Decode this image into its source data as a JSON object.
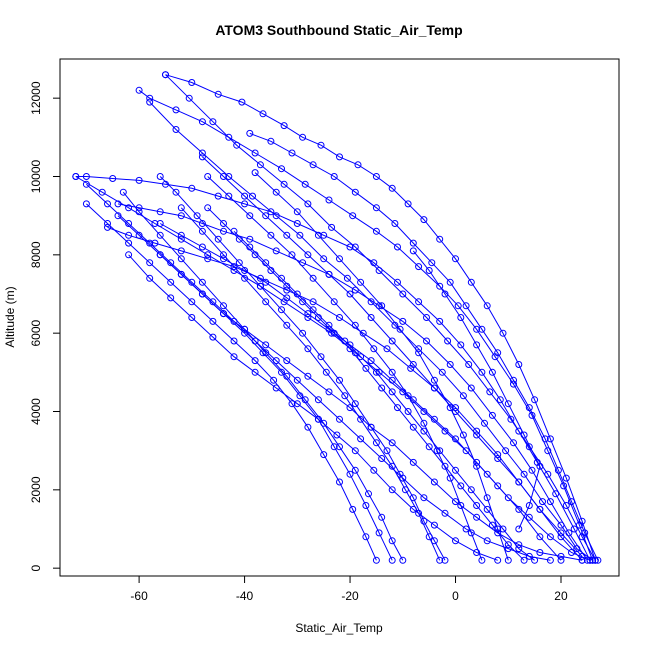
{
  "chart_data": {
    "type": "scatter",
    "title": "ATOM3 Southbound Static_Air_Temp",
    "xlabel": "Static_Air_Temp",
    "ylabel": "Altitude (m)",
    "xlim": [
      -75,
      31
    ],
    "ylim": [
      -200,
      13000
    ],
    "xticks": [
      -60,
      -40,
      -20,
      0,
      20
    ],
    "yticks": [
      0,
      2000,
      4000,
      6000,
      8000,
      10000,
      12000
    ],
    "plot_style": "points connected by lines, open circle markers",
    "grid": false,
    "legend": "none",
    "color": "#0000ff",
    "series": [
      {
        "x": [
          26.5,
          24.0,
          21.0,
          18.0,
          15.0,
          12.0,
          9.0,
          6.0,
          3.0,
          0.0,
          -3.0,
          -6.0,
          -9.0,
          -12.0,
          -15.0,
          -18.5,
          -22.0,
          -25.5,
          -29.0,
          -32.5,
          -36.5,
          -40.5,
          -45.0,
          -50.0,
          -55.0
        ],
        "y": [
          200,
          1200,
          2300,
          3300,
          4300,
          5200,
          6000,
          6700,
          7300,
          7900,
          8400,
          8900,
          9300,
          9700,
          10000,
          10300,
          10500,
          10800,
          11000,
          11300,
          11600,
          11900,
          12100,
          12400,
          12600
        ]
      },
      {
        "x": [
          -55.0,
          -50.5,
          -46.0,
          -41.5,
          -37.0,
          -32.5,
          -28.0,
          -23.5,
          -19.0,
          -14.5,
          -10.0,
          -5.5,
          -1.5,
          2.5,
          6.5,
          10.5,
          14.0,
          17.5,
          21.0,
          24.0,
          26.5
        ],
        "y": [
          12600,
          12000,
          11400,
          10800,
          10300,
          9800,
          9300,
          8700,
          8200,
          7600,
          7000,
          6400,
          5800,
          5200,
          4500,
          3800,
          3100,
          2400,
          1600,
          800,
          200
        ]
      },
      {
        "x": [
          26.0,
          23.5,
          20.5,
          17.5,
          14.5,
          11.0,
          7.5,
          4.0,
          0.5,
          -3.0,
          -7.0,
          -11.0,
          -15.0,
          -19.5,
          -24.0,
          -28.5,
          -33.0,
          -38.0,
          -43.0,
          -48.0,
          -53.0,
          -58.0,
          -60.0
        ],
        "y": [
          200,
          1100,
          2100,
          3000,
          3900,
          4700,
          5400,
          6100,
          6700,
          7200,
          7700,
          8200,
          8600,
          9000,
          9400,
          9800,
          10200,
          10600,
          11000,
          11400,
          11700,
          12000,
          12200
        ]
      },
      {
        "x": [
          -58.0,
          -53.0,
          -48.0,
          -43.0,
          -38.5,
          -34.0,
          -29.5,
          -25.0,
          -20.5,
          -16.0,
          -11.5,
          -7.0,
          -2.5,
          1.5,
          5.5,
          9.5,
          13.0,
          16.5,
          20.0,
          23.0,
          26.0
        ],
        "y": [
          11900,
          11200,
          10600,
          10000,
          9500,
          9000,
          8500,
          7900,
          7400,
          6800,
          6200,
          5600,
          5000,
          4400,
          3700,
          3000,
          2400,
          1700,
          1100,
          500,
          200
        ]
      },
      {
        "x": [
          25.5,
          22.5,
          19.0,
          15.5,
          12.0,
          8.5,
          5.0,
          1.0,
          -3.0,
          -7.0,
          -11.0,
          -15.5,
          -20.0,
          -25.0,
          -30.0,
          -35.0,
          -40.0,
          -45.0,
          -50.0,
          -55.0,
          -60.0,
          -65.0,
          -70.0,
          -72.0
        ],
        "y": [
          200,
          1000,
          1900,
          2700,
          3500,
          4300,
          5000,
          5700,
          6300,
          6800,
          7300,
          7800,
          8200,
          8500,
          8800,
          9100,
          9300,
          9500,
          9700,
          9800,
          9900,
          9950,
          10000,
          10000
        ]
      },
      {
        "x": [
          -72.0,
          -67.0,
          -62.0,
          -57.0,
          -52.0,
          -47.0,
          -42.0,
          -37.0,
          -32.5,
          -28.0,
          -23.5,
          -19.0,
          -14.5,
          -10.0,
          -6.0,
          -2.0,
          2.0,
          6.0,
          10.0,
          14.0,
          18.0,
          22.0,
          25.5
        ],
        "y": [
          10000,
          9600,
          9200,
          8800,
          8400,
          8000,
          7600,
          7200,
          6800,
          6400,
          6000,
          5500,
          5000,
          4500,
          4000,
          3500,
          3000,
          2400,
          1800,
          1300,
          800,
          400,
          200
        ]
      },
      {
        "x": [
          25.0,
          21.5,
          18.0,
          14.5,
          11.0,
          7.0,
          3.0,
          -1.0,
          -5.5,
          -10.0,
          -14.5,
          -19.0,
          -24.0,
          -29.0,
          -34.0,
          -39.0,
          -44.0,
          -48.0,
          -52.0,
          -56.0,
          -60.0,
          -64.0
        ],
        "y": [
          200,
          900,
          1700,
          2500,
          3200,
          3900,
          4600,
          5200,
          5800,
          6300,
          6700,
          7100,
          7500,
          7800,
          8100,
          8400,
          8600,
          8800,
          9000,
          9100,
          9200,
          9300
        ]
      },
      {
        "x": [
          -64.0,
          -60.0,
          -56.0,
          -52.0,
          -48.0,
          -44.0,
          -40.0,
          -36.0,
          -32.0,
          -28.0,
          -24.0,
          -20.0,
          -16.0,
          -12.0,
          -8.0,
          -4.0,
          0.0,
          4.0,
          8.0,
          12.0,
          16.0,
          20.0,
          24.0
        ],
        "y": [
          9000,
          8500,
          8000,
          7500,
          7000,
          6500,
          6100,
          5700,
          5300,
          4900,
          4500,
          4100,
          3600,
          3200,
          2700,
          2200,
          1700,
          1300,
          900,
          600,
          400,
          300,
          200
        ]
      },
      {
        "x": [
          24.0,
          20.0,
          16.0,
          12.0,
          8.0,
          4.0,
          0.0,
          -4.0,
          -8.5,
          -13.0,
          -17.5,
          -22.0,
          -27.0,
          -32.0,
          -37.0,
          -42.0,
          -47.0,
          -52.0,
          -57.0,
          -62.0,
          -66.0
        ],
        "y": [
          200,
          800,
          1500,
          2200,
          2900,
          3500,
          4100,
          4600,
          5100,
          5600,
          6000,
          6400,
          6800,
          7100,
          7400,
          7700,
          7900,
          8100,
          8300,
          8500,
          8700
        ]
      },
      {
        "x": [
          -62.0,
          -58.0,
          -54.0,
          -50.0,
          -46.0,
          -42.0,
          -38.0,
          -34.0,
          -30.0,
          -26.0,
          -22.5,
          -19.0,
          -15.5,
          -12.0,
          -8.0,
          -4.0,
          0.0,
          4.0,
          8.0
        ],
        "y": [
          8000,
          7400,
          6900,
          6400,
          5900,
          5400,
          5000,
          4600,
          4200,
          3800,
          3400,
          3000,
          2500,
          2000,
          1500,
          1100,
          700,
          400,
          200
        ]
      },
      {
        "x": [
          20.0,
          16.0,
          12.0,
          8.0,
          4.0,
          0.0,
          -4.0,
          -8.0,
          -12.0,
          -16.0,
          -20.0,
          -24.0,
          -28.0,
          -32.0,
          -36.0,
          -40.0,
          -44.0,
          -48.0,
          -52.0,
          -56.0
        ],
        "y": [
          200,
          800,
          1500,
          2100,
          2700,
          3300,
          3800,
          4300,
          4800,
          5300,
          5700,
          6100,
          6500,
          6900,
          7300,
          7600,
          7900,
          8200,
          8500,
          8800
        ]
      },
      {
        "x": [
          -56.0,
          -52.0,
          -48.0,
          -44.0,
          -40.0,
          -36.5,
          -33.0,
          -29.5,
          -26.0,
          -23.0,
          -20.0,
          -17.0,
          -14.5,
          -12.0
        ],
        "y": [
          8000,
          7500,
          7000,
          6500,
          6000,
          5500,
          5000,
          4400,
          3800,
          3100,
          2400,
          1600,
          900,
          200
        ]
      },
      {
        "x": [
          -15.0,
          -17.0,
          -19.5,
          -22.0,
          -25.0,
          -28.0,
          -31.0,
          -34.5,
          -38.0,
          -42.0,
          -46.0,
          -50.0,
          -54.0,
          -58.0,
          -62.0,
          -66.0,
          -70.0
        ],
        "y": [
          200,
          800,
          1500,
          2200,
          2900,
          3600,
          4200,
          4800,
          5300,
          5800,
          6300,
          6800,
          7300,
          7800,
          8300,
          8800,
          9300
        ]
      },
      {
        "x": [
          -70.0,
          -66.0,
          -62.0,
          -58.0,
          -54.0,
          -50.0,
          -46.0,
          -42.0,
          -38.0,
          -34.0,
          -30.0,
          -26.0,
          -22.0,
          -18.0,
          -14.0,
          -10.0,
          -6.0,
          -2.0,
          2.0,
          6.0,
          10.0,
          14.0,
          18.0
        ],
        "y": [
          9800,
          9300,
          8800,
          8300,
          7800,
          7300,
          6800,
          6300,
          5800,
          5300,
          4800,
          4300,
          3800,
          3300,
          2800,
          2300,
          1800,
          1400,
          1000,
          700,
          500,
          300,
          200
        ]
      },
      {
        "x": [
          27.0,
          24.5,
          22.0,
          19.5,
          17.0,
          14.0,
          11.0,
          8.0,
          5.0,
          2.0,
          -1.0,
          -4.5,
          -8.0,
          -11.5,
          -15.0,
          -19.0,
          -23.0,
          -27.0,
          -31.0,
          -35.0,
          -39.0
        ],
        "y": [
          200,
          900,
          1700,
          2500,
          3300,
          4100,
          4800,
          5500,
          6100,
          6700,
          7300,
          7800,
          8300,
          8800,
          9200,
          9600,
          10000,
          10300,
          10600,
          10900,
          11100
        ]
      },
      {
        "x": [
          -48.0,
          -44.0,
          -40.0,
          -36.0,
          -32.0,
          -28.0,
          -24.0,
          -20.0,
          -16.0,
          -12.0,
          -8.0,
          -4.0,
          0.0,
          4.0,
          8.0,
          12.0,
          16.0,
          20.0,
          24.0
        ],
        "y": [
          10500,
          10000,
          9500,
          9000,
          8500,
          8000,
          7500,
          7000,
          6400,
          5800,
          5200,
          4600,
          4000,
          3400,
          2800,
          2200,
          1500,
          900,
          300
        ]
      },
      {
        "x": [
          -47.0,
          -44.0,
          -41.0,
          -38.0,
          -35.0,
          -32.0,
          -29.0,
          -26.0,
          -23.0,
          -20.0,
          -17.0,
          -14.0,
          -11.0,
          -8.0,
          -5.0,
          -2.0,
          1.0,
          4.0,
          7.0,
          10.0,
          13.0
        ],
        "y": [
          9200,
          8800,
          8400,
          8000,
          7600,
          7200,
          6800,
          6400,
          6000,
          5600,
          5100,
          4600,
          4100,
          3600,
          3100,
          2600,
          2100,
          1600,
          1100,
          600,
          200
        ]
      },
      {
        "x": [
          -42.0,
          -39.0,
          -36.0,
          -33.0,
          -30.0,
          -27.0,
          -24.0,
          -21.0,
          -18.0,
          -15.0,
          -12.0,
          -9.0,
          -6.0,
          -3.0,
          0.0,
          3.0,
          6.0,
          9.0,
          12.0,
          15.0
        ],
        "y": [
          8600,
          8200,
          7800,
          7400,
          7000,
          6600,
          6200,
          5800,
          5400,
          5000,
          4500,
          4000,
          3500,
          3000,
          2500,
          2000,
          1500,
          1000,
          500,
          200
        ]
      },
      {
        "x": [
          -10.0,
          -12.0,
          -14.0,
          -16.5,
          -19.0,
          -22.0,
          -25.0,
          -28.5,
          -32.0,
          -36.0,
          -40.0,
          -44.0,
          -48.0,
          -52.0,
          -56.0,
          -60.0,
          -63.0
        ],
        "y": [
          200,
          700,
          1300,
          1900,
          2500,
          3100,
          3700,
          4300,
          4900,
          5500,
          6100,
          6700,
          7300,
          7900,
          8500,
          9100,
          9600
        ]
      },
      {
        "x": [
          -3.0,
          -5.0,
          -7.0,
          -9.5,
          -12.0,
          -15.0,
          -18.0,
          -21.0,
          -24.5,
          -28.0,
          -32.0,
          -36.0,
          -40.0,
          -44.0,
          -48.0,
          -52.0
        ],
        "y": [
          200,
          800,
          1400,
          2000,
          2600,
          3200,
          3800,
          4400,
          5000,
          5600,
          6200,
          6800,
          7400,
          8000,
          8600,
          9200
        ]
      },
      {
        "x": [
          -2.0,
          -4.0,
          -6.0,
          -8.0,
          -10.5,
          -13.0,
          -16.0,
          -19.0,
          -22.0,
          -25.5,
          -29.0,
          -33.0,
          -37.0,
          -41.0,
          -45.0,
          -49.0,
          -53.0,
          -56.0
        ],
        "y": [
          200,
          700,
          1200,
          1800,
          2400,
          3000,
          3600,
          4200,
          4800,
          5400,
          6000,
          6600,
          7200,
          7800,
          8400,
          9000,
          9600,
          10000
        ]
      },
      {
        "x": [
          5.0,
          3.0,
          1.0,
          -1.0,
          -3.5,
          -6.0,
          -9.0,
          -12.0,
          -15.5,
          -19.0,
          -23.0,
          -27.0,
          -31.0,
          -35.0,
          -39.0,
          -43.0,
          -47.0
        ],
        "y": [
          200,
          900,
          1600,
          2300,
          3000,
          3700,
          4400,
          5000,
          5600,
          6200,
          6800,
          7400,
          8000,
          8500,
          9000,
          9500,
          10000
        ]
      },
      {
        "x": [
          10.0,
          8.0,
          6.0,
          4.0,
          1.5,
          -1.0,
          -4.0,
          -7.0,
          -10.5,
          -14.0,
          -18.0,
          -22.0,
          -26.0,
          -30.0,
          -34.0,
          -38.0
        ],
        "y": [
          200,
          1000,
          1800,
          2600,
          3400,
          4100,
          4800,
          5500,
          6100,
          6700,
          7300,
          7900,
          8500,
          9100,
          9600,
          10100
        ]
      },
      {
        "x": [
          12.0,
          14.0,
          16.0,
          13.0,
          10.0,
          7.0,
          4.0,
          1.0,
          -2.0,
          -5.0,
          -8.0
        ],
        "y": [
          1000,
          1600,
          2600,
          3400,
          4200,
          5000,
          5700,
          6400,
          7000,
          7600,
          8100
        ]
      }
    ]
  }
}
